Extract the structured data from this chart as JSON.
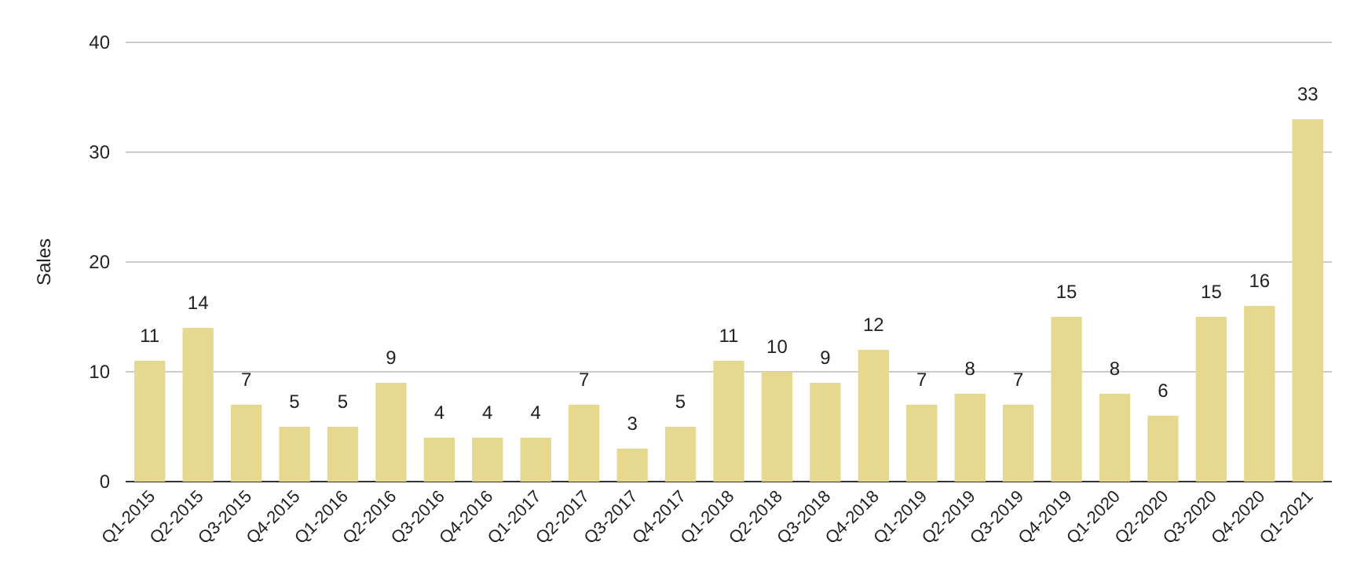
{
  "chart_data": {
    "type": "bar",
    "ylabel": "Sales",
    "categories": [
      "Q1-2015",
      "Q2-2015",
      "Q3-2015",
      "Q4-2015",
      "Q1-2016",
      "Q2-2016",
      "Q3-2016",
      "Q4-2016",
      "Q1-2017",
      "Q2-2017",
      "Q3-2017",
      "Q4-2017",
      "Q1-2018",
      "Q2-2018",
      "Q3-2018",
      "Q4-2018",
      "Q1-2019",
      "Q2-2019",
      "Q3-2019",
      "Q4-2019",
      "Q1-2020",
      "Q2-2020",
      "Q3-2020",
      "Q4-2020",
      "Q1-2021"
    ],
    "values": [
      11,
      14,
      7,
      5,
      5,
      9,
      4,
      4,
      4,
      7,
      3,
      5,
      11,
      10,
      9,
      12,
      7,
      8,
      7,
      15,
      8,
      6,
      15,
      16,
      33
    ],
    "color": "#e6d88f",
    "ylim": [
      0,
      40
    ],
    "yticks": [
      0,
      10,
      20,
      30,
      40
    ],
    "grid": "y",
    "data_labels": true
  }
}
